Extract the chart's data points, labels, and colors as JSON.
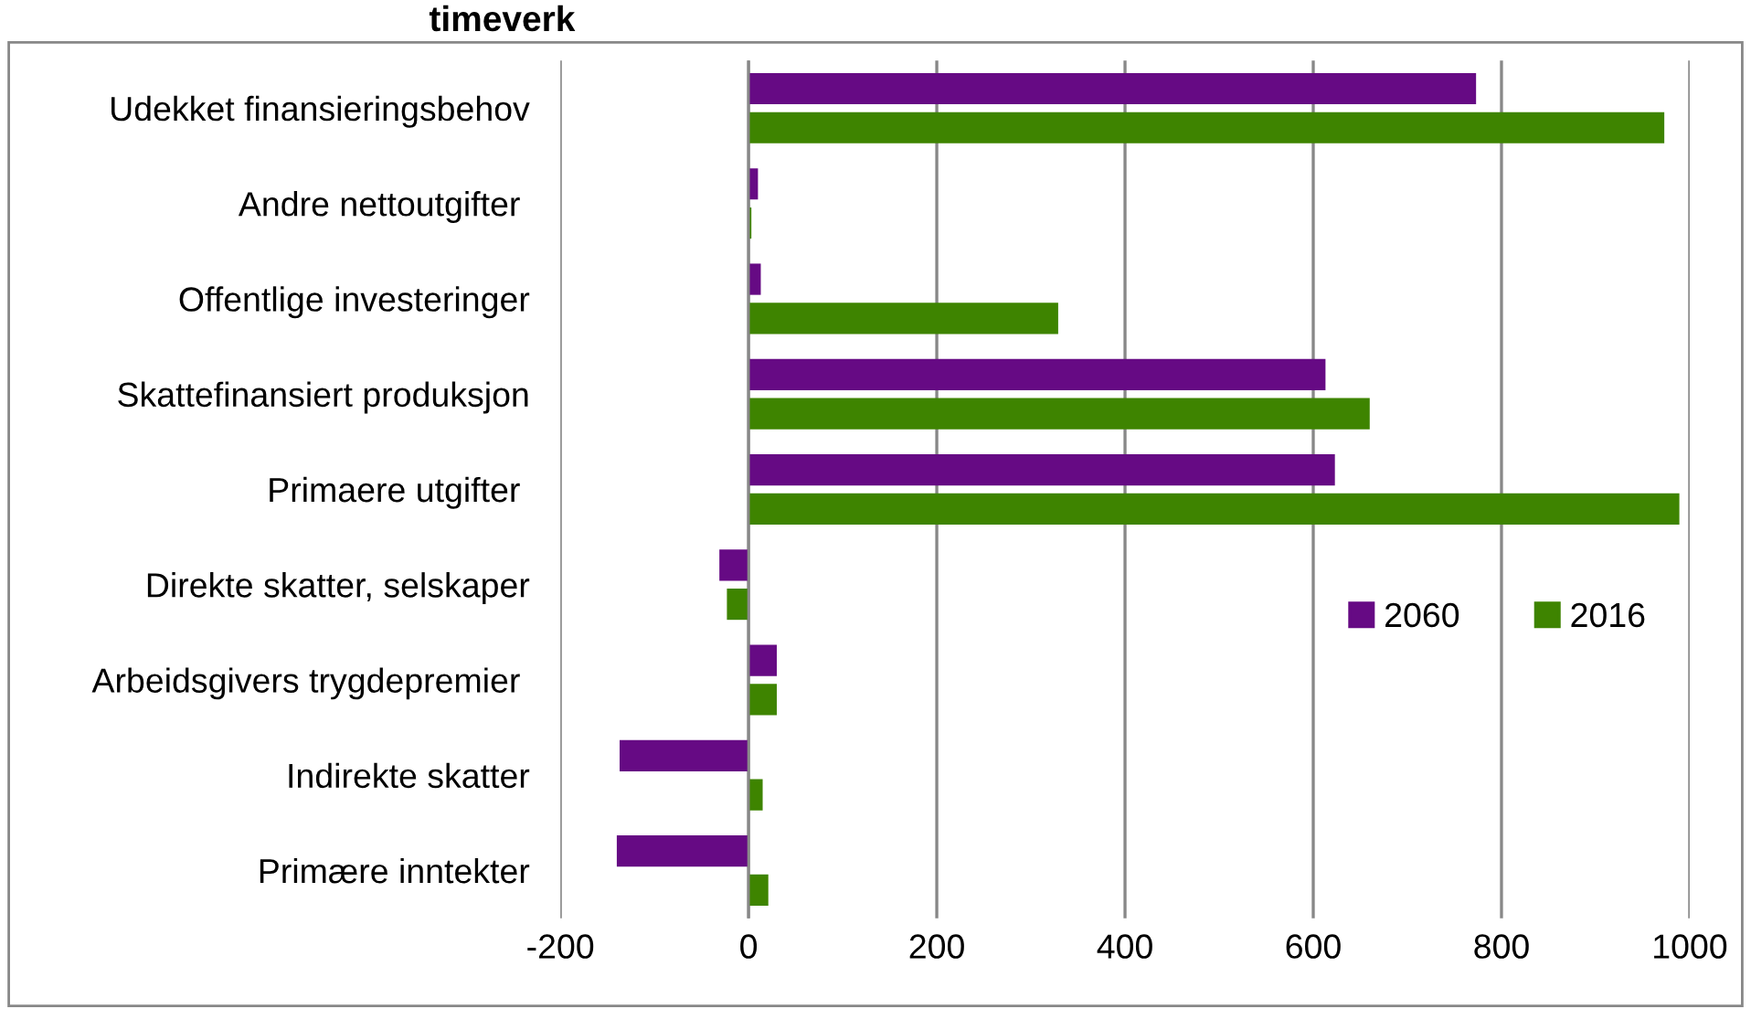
{
  "chart_data": {
    "type": "bar",
    "orientation": "horizontal",
    "title": "timeverk",
    "categories": [
      "Udekket finansieringsbehov",
      "Andre nettoutgifter ",
      "Offentlige investeringer",
      "Skattefinansiert produksjon",
      "Primaere utgifter ",
      "Direkte skatter, selskaper",
      "Arbeidsgivers trygdepremier ",
      "Indirekte skatter",
      "Primære inntekter"
    ],
    "series": [
      {
        "name": "2060",
        "color": "#660a84",
        "values": [
          773,
          10,
          13,
          613,
          623,
          -31,
          30,
          -137,
          -140
        ]
      },
      {
        "name": "2016",
        "color": "#3e8400",
        "values": [
          973,
          3,
          329,
          660,
          989,
          -23,
          30,
          15,
          21
        ]
      }
    ],
    "xlim": [
      -200,
      1000
    ],
    "xticks": [
      -200,
      0,
      200,
      400,
      600,
      800,
      1000
    ],
    "grid": "x",
    "legend": "right"
  }
}
